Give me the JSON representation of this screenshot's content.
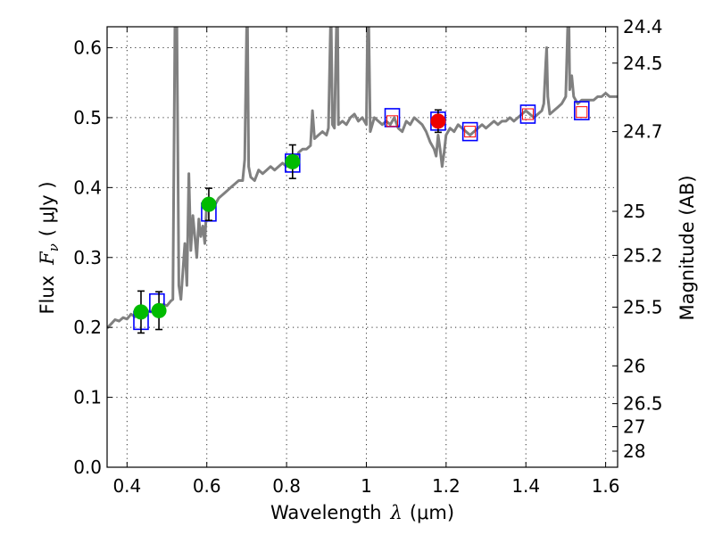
{
  "chart_data": {
    "type": "scatter",
    "xlabel": "Wavelength",
    "xlabel_symbol": "λ",
    "xlabel_unit": "(μm)",
    "ylabel": "Flux",
    "ylabel_symbol": "F",
    "ylabel_subscript": "ν",
    "ylabel_unit": "( μJy )",
    "right_ylabel": "Magnitude (AB)",
    "xlim": [
      0.35,
      1.63
    ],
    "ylim": [
      0.0,
      0.63
    ],
    "grid": true,
    "x_ticks": [
      {
        "value": 0.4,
        "label": "0.4"
      },
      {
        "value": 0.6,
        "label": "0.6"
      },
      {
        "value": 0.8,
        "label": "0.8"
      },
      {
        "value": 1.0,
        "label": "1"
      },
      {
        "value": 1.2,
        "label": "1.2"
      },
      {
        "value": 1.4,
        "label": "1.4"
      },
      {
        "value": 1.6,
        "label": "1.6"
      }
    ],
    "y_ticks": [
      {
        "value": 0.0,
        "label": "0.0"
      },
      {
        "value": 0.1,
        "label": "0.1"
      },
      {
        "value": 0.2,
        "label": "0.2"
      },
      {
        "value": 0.3,
        "label": "0.3"
      },
      {
        "value": 0.4,
        "label": "0.4"
      },
      {
        "value": 0.5,
        "label": "0.5"
      },
      {
        "value": 0.6,
        "label": "0.6"
      }
    ],
    "right_ticks": [
      {
        "flux": 0.63,
        "label": "24.4"
      },
      {
        "flux": 0.578,
        "label": "24.5"
      },
      {
        "flux": 0.48,
        "label": "24.7"
      },
      {
        "flux": 0.366,
        "label": "25"
      },
      {
        "flux": 0.303,
        "label": "25.2"
      },
      {
        "flux": 0.229,
        "label": "25.5"
      },
      {
        "flux": 0.145,
        "label": "26"
      },
      {
        "flux": 0.091,
        "label": "26.5"
      },
      {
        "flux": 0.058,
        "label": "27"
      },
      {
        "flux": 0.023,
        "label": "28"
      }
    ],
    "series": [
      {
        "name": "model spectrum",
        "kind": "line",
        "color": "#808080",
        "points": [
          [
            0.35,
            0.199
          ],
          [
            0.36,
            0.205
          ],
          [
            0.37,
            0.211
          ],
          [
            0.38,
            0.209
          ],
          [
            0.39,
            0.214
          ],
          [
            0.4,
            0.212
          ],
          [
            0.41,
            0.219
          ],
          [
            0.42,
            0.215
          ],
          [
            0.43,
            0.221
          ],
          [
            0.44,
            0.218
          ],
          [
            0.45,
            0.224
          ],
          [
            0.46,
            0.222
          ],
          [
            0.47,
            0.229
          ],
          [
            0.48,
            0.226
          ],
          [
            0.49,
            0.233
          ],
          [
            0.5,
            0.231
          ],
          [
            0.51,
            0.238
          ],
          [
            0.515,
            0.24
          ],
          [
            0.52,
            0.63
          ],
          [
            0.525,
            0.632
          ],
          [
            0.53,
            0.26
          ],
          [
            0.535,
            0.24
          ],
          [
            0.54,
            0.28
          ],
          [
            0.545,
            0.32
          ],
          [
            0.55,
            0.26
          ],
          [
            0.555,
            0.42
          ],
          [
            0.56,
            0.31
          ],
          [
            0.565,
            0.36
          ],
          [
            0.57,
            0.33
          ],
          [
            0.575,
            0.3
          ],
          [
            0.58,
            0.355
          ],
          [
            0.585,
            0.33
          ],
          [
            0.59,
            0.345
          ],
          [
            0.595,
            0.32
          ],
          [
            0.6,
            0.38
          ],
          [
            0.61,
            0.37
          ],
          [
            0.62,
            0.375
          ],
          [
            0.63,
            0.385
          ],
          [
            0.64,
            0.39
          ],
          [
            0.65,
            0.395
          ],
          [
            0.66,
            0.4
          ],
          [
            0.67,
            0.405
          ],
          [
            0.68,
            0.41
          ],
          [
            0.69,
            0.41
          ],
          [
            0.695,
            0.44
          ],
          [
            0.7,
            0.63
          ],
          [
            0.702,
            0.632
          ],
          [
            0.705,
            0.43
          ],
          [
            0.71,
            0.415
          ],
          [
            0.72,
            0.41
          ],
          [
            0.73,
            0.425
          ],
          [
            0.74,
            0.42
          ],
          [
            0.75,
            0.425
          ],
          [
            0.76,
            0.43
          ],
          [
            0.77,
            0.425
          ],
          [
            0.78,
            0.43
          ],
          [
            0.79,
            0.435
          ],
          [
            0.8,
            0.43
          ],
          [
            0.81,
            0.44
          ],
          [
            0.815,
            0.435
          ],
          [
            0.82,
            0.445
          ],
          [
            0.825,
            0.44
          ],
          [
            0.83,
            0.45
          ],
          [
            0.84,
            0.455
          ],
          [
            0.85,
            0.455
          ],
          [
            0.86,
            0.46
          ],
          [
            0.865,
            0.51
          ],
          [
            0.87,
            0.47
          ],
          [
            0.88,
            0.475
          ],
          [
            0.89,
            0.48
          ],
          [
            0.9,
            0.475
          ],
          [
            0.905,
            0.485
          ],
          [
            0.91,
            0.63
          ],
          [
            0.912,
            0.632
          ],
          [
            0.915,
            0.49
          ],
          [
            0.92,
            0.485
          ],
          [
            0.925,
            0.63
          ],
          [
            0.928,
            0.632
          ],
          [
            0.93,
            0.49
          ],
          [
            0.94,
            0.495
          ],
          [
            0.95,
            0.49
          ],
          [
            0.96,
            0.5
          ],
          [
            0.97,
            0.505
          ],
          [
            0.98,
            0.495
          ],
          [
            0.99,
            0.5
          ],
          [
            1.0,
            0.49
          ],
          [
            1.003,
            0.632
          ],
          [
            1.006,
            0.63
          ],
          [
            1.01,
            0.48
          ],
          [
            1.02,
            0.5
          ],
          [
            1.03,
            0.495
          ],
          [
            1.04,
            0.49
          ],
          [
            1.05,
            0.495
          ],
          [
            1.06,
            0.49
          ],
          [
            1.07,
            0.5
          ],
          [
            1.08,
            0.485
          ],
          [
            1.09,
            0.48
          ],
          [
            1.1,
            0.495
          ],
          [
            1.11,
            0.49
          ],
          [
            1.12,
            0.5
          ],
          [
            1.13,
            0.495
          ],
          [
            1.14,
            0.49
          ],
          [
            1.15,
            0.48
          ],
          [
            1.16,
            0.465
          ],
          [
            1.17,
            0.455
          ],
          [
            1.175,
            0.445
          ],
          [
            1.18,
            0.475
          ],
          [
            1.185,
            0.455
          ],
          [
            1.19,
            0.43
          ],
          [
            1.195,
            0.45
          ],
          [
            1.2,
            0.475
          ],
          [
            1.21,
            0.485
          ],
          [
            1.22,
            0.48
          ],
          [
            1.23,
            0.49
          ],
          [
            1.24,
            0.485
          ],
          [
            1.25,
            0.48
          ],
          [
            1.26,
            0.475
          ],
          [
            1.27,
            0.48
          ],
          [
            1.28,
            0.485
          ],
          [
            1.29,
            0.49
          ],
          [
            1.3,
            0.485
          ],
          [
            1.31,
            0.49
          ],
          [
            1.32,
            0.495
          ],
          [
            1.33,
            0.49
          ],
          [
            1.34,
            0.495
          ],
          [
            1.35,
            0.495
          ],
          [
            1.36,
            0.5
          ],
          [
            1.37,
            0.495
          ],
          [
            1.38,
            0.5
          ],
          [
            1.39,
            0.505
          ],
          [
            1.4,
            0.51
          ],
          [
            1.41,
            0.505
          ],
          [
            1.42,
            0.5
          ],
          [
            1.43,
            0.505
          ],
          [
            1.44,
            0.51
          ],
          [
            1.445,
            0.52
          ],
          [
            1.45,
            0.58
          ],
          [
            1.452,
            0.6
          ],
          [
            1.455,
            0.53
          ],
          [
            1.46,
            0.505
          ],
          [
            1.47,
            0.51
          ],
          [
            1.48,
            0.515
          ],
          [
            1.49,
            0.52
          ],
          [
            1.5,
            0.53
          ],
          [
            1.505,
            0.63
          ],
          [
            1.508,
            0.632
          ],
          [
            1.51,
            0.54
          ],
          [
            1.515,
            0.56
          ],
          [
            1.52,
            0.53
          ],
          [
            1.53,
            0.52
          ],
          [
            1.54,
            0.525
          ],
          [
            1.55,
            0.525
          ],
          [
            1.56,
            0.525
          ],
          [
            1.57,
            0.525
          ],
          [
            1.58,
            0.53
          ],
          [
            1.59,
            0.53
          ],
          [
            1.6,
            0.535
          ],
          [
            1.61,
            0.53
          ],
          [
            1.62,
            0.53
          ],
          [
            1.63,
            0.53
          ]
        ]
      },
      {
        "name": "model band fluxes",
        "kind": "open-square",
        "color": "#0000ff",
        "points": [
          [
            0.435,
            0.21
          ],
          [
            0.475,
            0.235
          ],
          [
            0.605,
            0.365
          ],
          [
            0.815,
            0.435
          ],
          [
            1.065,
            0.5
          ],
          [
            1.18,
            0.495
          ],
          [
            1.26,
            0.48
          ],
          [
            1.405,
            0.505
          ],
          [
            1.54,
            0.51
          ]
        ]
      },
      {
        "name": "upper-limit markers",
        "kind": "small-square",
        "color": "#ff0000",
        "points": [
          [
            1.065,
            0.495
          ],
          [
            1.26,
            0.48
          ],
          [
            1.405,
            0.505
          ],
          [
            1.54,
            0.508
          ]
        ]
      },
      {
        "name": "measured photometry",
        "kind": "filled-circle",
        "color": "#00bb00",
        "points": [
          {
            "x": 0.435,
            "y": 0.222,
            "err": 0.03
          },
          {
            "x": 0.48,
            "y": 0.224,
            "err": 0.027
          },
          {
            "x": 0.605,
            "y": 0.376,
            "err": 0.023
          },
          {
            "x": 0.815,
            "y": 0.437,
            "err": 0.024
          }
        ]
      },
      {
        "name": "highlighted measurement",
        "kind": "filled-circle",
        "color": "#ee0000",
        "points": [
          {
            "x": 1.18,
            "y": 0.495,
            "err": 0.016
          }
        ]
      }
    ]
  }
}
